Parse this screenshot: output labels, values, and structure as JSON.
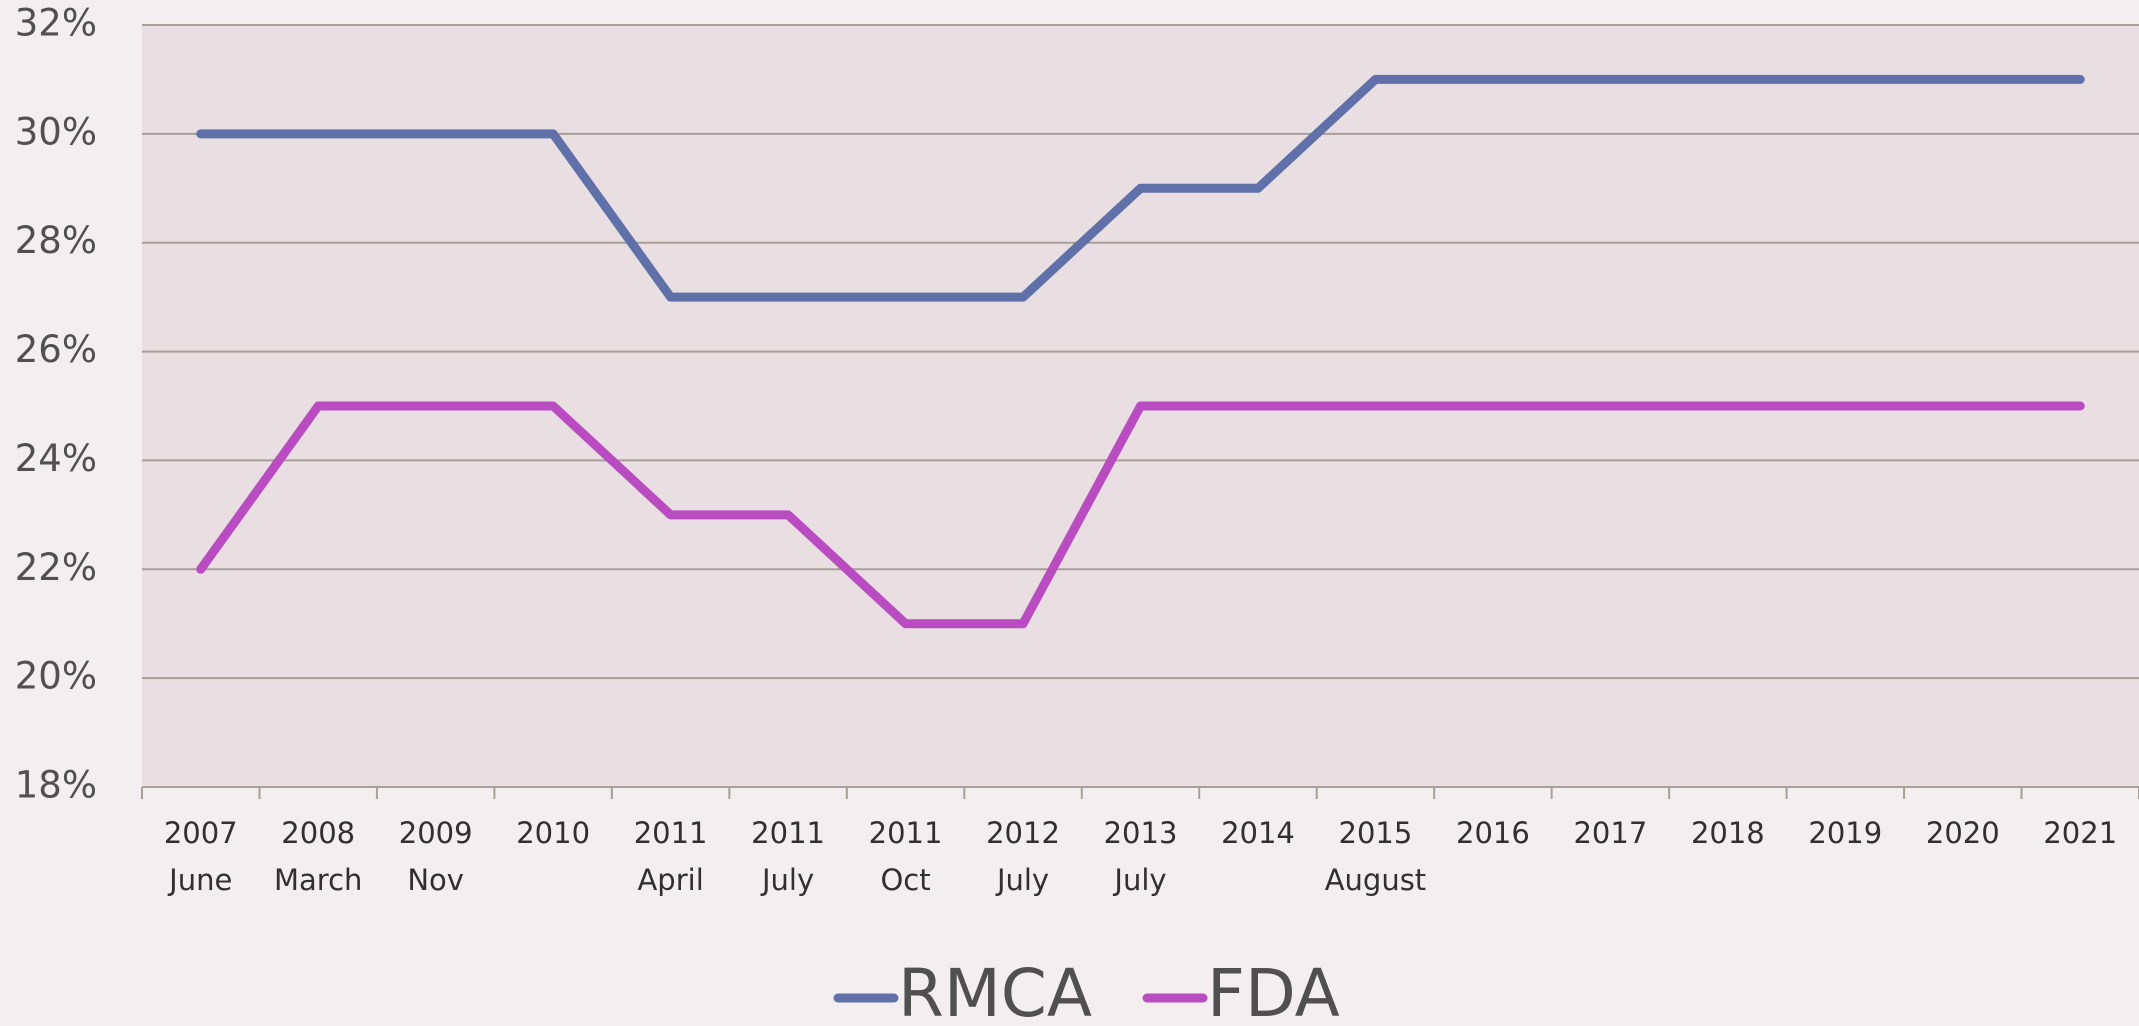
{
  "chart_data": {
    "type": "line",
    "categories": [
      [
        "2007",
        "June"
      ],
      [
        "2008",
        "March"
      ],
      [
        "2009",
        "Nov"
      ],
      [
        "2010"
      ],
      [
        "2011",
        "April"
      ],
      [
        "2011",
        "July"
      ],
      [
        "2011",
        "Oct"
      ],
      [
        "2012",
        "July"
      ],
      [
        "2013",
        "July"
      ],
      [
        "2014"
      ],
      [
        "2015",
        "August"
      ],
      [
        "2016"
      ],
      [
        "2017"
      ],
      [
        "2018"
      ],
      [
        "2019"
      ],
      [
        "2020"
      ],
      [
        "2021"
      ]
    ],
    "series": [
      {
        "name": "RMCA",
        "color": "#5f71a8",
        "values": [
          30,
          30,
          30,
          30,
          27,
          27,
          27,
          27,
          29,
          29,
          31,
          31,
          31,
          31,
          31,
          31,
          31
        ]
      },
      {
        "name": "FDA",
        "color": "#b94cc0",
        "values": [
          22,
          25,
          25,
          25,
          23,
          23,
          21,
          21,
          25,
          25,
          25,
          25,
          25,
          25,
          25,
          25,
          25
        ]
      }
    ],
    "ylim": [
      18,
      32
    ],
    "yticks": [
      {
        "value": 18,
        "label": "18%"
      },
      {
        "value": 20,
        "label": "20%"
      },
      {
        "value": 22,
        "label": "22%"
      },
      {
        "value": 24,
        "label": "24%"
      },
      {
        "value": 26,
        "label": "26%"
      },
      {
        "value": 28,
        "label": "28%"
      },
      {
        "value": 30,
        "label": "30%"
      },
      {
        "value": 32,
        "label": "32%"
      }
    ],
    "grid": true,
    "legend": "bottom"
  }
}
